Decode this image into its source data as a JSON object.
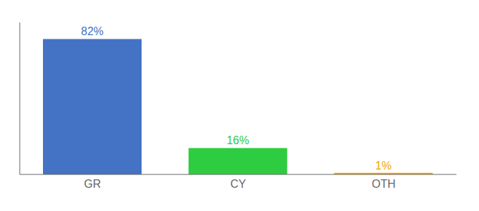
{
  "chart_data": {
    "type": "bar",
    "categories": [
      "GR",
      "CY",
      "OTH"
    ],
    "values": [
      82,
      16,
      1
    ],
    "value_labels": [
      "82%",
      "16%",
      "1%"
    ],
    "colors": [
      "#4472c4",
      "#2ecc40",
      "#f0a500"
    ],
    "ylim": [
      0,
      92
    ],
    "data_labels": true,
    "tick_labels": "x",
    "grid": false
  }
}
